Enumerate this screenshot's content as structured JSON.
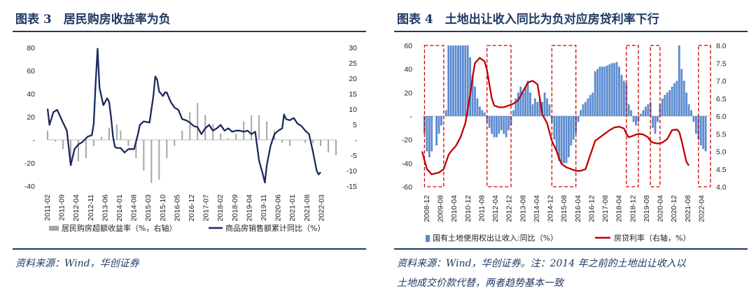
{
  "left_panel": {
    "title": "图表 3　居民购房收益率为负",
    "source": "资料来源：Wind，华创证券"
  },
  "right_panel": {
    "title": "图表 4　土地出让收入同比为负对应房贷利率下行",
    "source_line1": "资料来源：Wind，华创证券。注：2014 年之前的土地出让收入以",
    "source_line2": "土地成交价款代替，两者趋势基本一致"
  },
  "colors": {
    "navy": "#1b2a5e",
    "gray_bar": "#a6a6a6",
    "blue_bar": "#5b8bd0",
    "red_line": "#c00000",
    "frame": "#cc0000"
  },
  "chart_data": [
    {
      "type": "bar",
      "x_ticks": [
        "2011-02",
        "2011-09",
        "2012-04",
        "2012-11",
        "2013-06",
        "2014-01",
        "2014-08",
        "2015-03",
        "2015-10",
        "2016-05",
        "2016-12",
        "2017-07",
        "2018-02",
        "2018-09",
        "2019-04",
        "2019-11",
        "2020-06",
        "2021-01",
        "2021-08",
        "2022-03"
      ],
      "y_left": {
        "ticks": [
          "80",
          "60",
          "40",
          "20",
          "-",
          "-20",
          "-40"
        ],
        "ylim": [
          -40,
          80
        ]
      },
      "y_right": {
        "ticks": [
          "30",
          "25",
          "20",
          "15",
          "10",
          "5",
          "-",
          "-5",
          "-10",
          "-15"
        ],
        "ylim": [
          -15,
          30
        ]
      },
      "legend": [
        {
          "name": "居民购房超额收益率（%，右轴）",
          "color": "#a6a6a6",
          "kind": "bar"
        },
        {
          "name": "商品房销售额累计同比（%）",
          "color": "#1b2a5e",
          "kind": "line"
        }
      ],
      "bar_series_right_axis": [
        [
          0,
          3
        ],
        [
          4,
          -0.5
        ],
        [
          8,
          -3
        ],
        [
          12,
          -7
        ],
        [
          16,
          -7
        ],
        [
          20,
          -6
        ],
        [
          24,
          -2
        ],
        [
          28,
          1
        ],
        [
          32,
          4
        ],
        [
          36,
          5
        ],
        [
          38,
          3
        ],
        [
          42,
          -2
        ],
        [
          46,
          -6
        ],
        [
          50,
          -10
        ],
        [
          54,
          -14
        ],
        [
          58,
          -13
        ],
        [
          62,
          -6
        ],
        [
          66,
          -2
        ],
        [
          70,
          3
        ],
        [
          74,
          9
        ],
        [
          78,
          12
        ],
        [
          82,
          8
        ],
        [
          86,
          5
        ],
        [
          90,
          2
        ],
        [
          94,
          0.5
        ],
        [
          98,
          2
        ],
        [
          102,
          6
        ],
        [
          106,
          8
        ],
        [
          110,
          8
        ],
        [
          114,
          6
        ],
        [
          118,
          3
        ],
        [
          122,
          -1
        ],
        [
          126,
          -2
        ],
        [
          130,
          0
        ],
        [
          134,
          -1
        ],
        [
          138,
          -1
        ],
        [
          142,
          -2
        ],
        [
          146,
          -4
        ],
        [
          150,
          -5
        ]
      ],
      "line_series_left_axis": [
        [
          0,
          27
        ],
        [
          1,
          13
        ],
        [
          3,
          24
        ],
        [
          5,
          26
        ],
        [
          8,
          15
        ],
        [
          10,
          8
        ],
        [
          12,
          -22
        ],
        [
          14,
          -8
        ],
        [
          16,
          -4
        ],
        [
          18,
          -2
        ],
        [
          21,
          3
        ],
        [
          23,
          4
        ],
        [
          24,
          14
        ],
        [
          25,
          50
        ],
        [
          26,
          79
        ],
        [
          27,
          45
        ],
        [
          29,
          30
        ],
        [
          31,
          36
        ],
        [
          32,
          33
        ],
        [
          33,
          20
        ],
        [
          34,
          3
        ],
        [
          35,
          -6
        ],
        [
          36,
          -7
        ],
        [
          38,
          -7
        ],
        [
          40,
          -11
        ],
        [
          42,
          -8
        ],
        [
          45,
          -8
        ],
        [
          47,
          5
        ],
        [
          48,
          13
        ],
        [
          50,
          16
        ],
        [
          53,
          15
        ],
        [
          55,
          38
        ],
        [
          56,
          55
        ],
        [
          57,
          52
        ],
        [
          58,
          42
        ],
        [
          60,
          38
        ],
        [
          61,
          41
        ],
        [
          62,
          41
        ],
        [
          64,
          33
        ],
        [
          66,
          28
        ],
        [
          68,
          26
        ],
        [
          70,
          18
        ],
        [
          72,
          17
        ],
        [
          74,
          15
        ],
        [
          76,
          12
        ],
        [
          78,
          11
        ],
        [
          80,
          5
        ],
        [
          82,
          10
        ],
        [
          84,
          13
        ],
        [
          86,
          8
        ],
        [
          88,
          10
        ],
        [
          90,
          13
        ],
        [
          92,
          8
        ],
        [
          94,
          10
        ],
        [
          96,
          7
        ],
        [
          98,
          8
        ],
        [
          100,
          8
        ],
        [
          102,
          7
        ],
        [
          104,
          8
        ],
        [
          106,
          5
        ],
        [
          108,
          7
        ],
        [
          110,
          -18
        ],
        [
          112,
          -30
        ],
        [
          113,
          -37
        ],
        [
          114,
          -22
        ],
        [
          116,
          -5
        ],
        [
          118,
          5
        ],
        [
          120,
          8
        ],
        [
          122,
          10
        ],
        [
          123,
          22
        ],
        [
          124,
          18
        ],
        [
          126,
          17
        ],
        [
          128,
          19
        ],
        [
          130,
          14
        ],
        [
          132,
          12
        ],
        [
          134,
          8
        ],
        [
          136,
          5
        ],
        [
          138,
          -10
        ],
        [
          140,
          -27
        ],
        [
          141,
          -30
        ],
        [
          142,
          -28
        ]
      ],
      "x_index_max": 150
    },
    {
      "type": "bar",
      "x_ticks": [
        "2008-12",
        "2009-08",
        "2010-04",
        "2010-12",
        "2011-08",
        "2012-04",
        "2012-12",
        "2013-08",
        "2014-04",
        "2014-12",
        "2015-08",
        "2016-04",
        "2016-12",
        "2017-08",
        "2018-04",
        "2018-12",
        "2019-08",
        "2020-04",
        "2020-12",
        "2021-08",
        "2022-04"
      ],
      "y_left": {
        "ticks": [
          "60",
          "40",
          "20",
          "-",
          "-20",
          "-40",
          "-60"
        ],
        "ylim": [
          -60,
          60
        ]
      },
      "y_right": {
        "ticks": [
          "8.0",
          "7.5",
          "7.0",
          "6.5",
          "6.0",
          "5.5",
          "5.0",
          "4.5",
          "4.0"
        ],
        "ylim": [
          4.0,
          8.0
        ]
      },
      "legend": [
        {
          "name": "国有土地使用权出让收入:同比（%）",
          "color": "#5b8bd0",
          "kind": "bar"
        },
        {
          "name": "房贷利率（右轴，%）",
          "color": "#c00000",
          "kind": "line"
        }
      ],
      "bar_series_left_axis": [
        [
          1,
          -15
        ],
        [
          2,
          -30
        ],
        [
          3,
          -35
        ],
        [
          4,
          -30
        ],
        [
          6,
          -25
        ],
        [
          7,
          -15
        ],
        [
          8,
          -8
        ],
        [
          10,
          5
        ],
        [
          11,
          60
        ],
        [
          12,
          60
        ],
        [
          13,
          60
        ],
        [
          14,
          60
        ],
        [
          15,
          60
        ],
        [
          16,
          60
        ],
        [
          17,
          60
        ],
        [
          18,
          60
        ],
        [
          19,
          60
        ],
        [
          20,
          50
        ],
        [
          21,
          35
        ],
        [
          22,
          25
        ],
        [
          23,
          15
        ],
        [
          24,
          8
        ],
        [
          25,
          5
        ],
        [
          26,
          3
        ],
        [
          27,
          -5
        ],
        [
          28,
          -10
        ],
        [
          29,
          -15
        ],
        [
          30,
          -18
        ],
        [
          31,
          -18
        ],
        [
          32,
          -15
        ],
        [
          33,
          -12
        ],
        [
          34,
          -15
        ],
        [
          35,
          -18
        ],
        [
          36,
          -12
        ],
        [
          37,
          -8
        ],
        [
          38,
          5
        ],
        [
          39,
          15
        ],
        [
          40,
          20
        ],
        [
          41,
          25
        ],
        [
          42,
          20
        ],
        [
          43,
          25
        ],
        [
          44,
          30
        ],
        [
          45,
          20
        ],
        [
          46,
          10
        ],
        [
          47,
          15
        ],
        [
          48,
          12
        ],
        [
          49,
          15
        ],
        [
          50,
          12
        ],
        [
          51,
          20
        ],
        [
          52,
          15
        ],
        [
          53,
          10
        ],
        [
          54,
          -5
        ],
        [
          55,
          -20
        ],
        [
          56,
          -30
        ],
        [
          57,
          -38
        ],
        [
          58,
          -40
        ],
        [
          59,
          -40
        ],
        [
          60,
          -40
        ],
        [
          61,
          -35
        ],
        [
          62,
          -25
        ],
        [
          63,
          -20
        ],
        [
          64,
          -15
        ],
        [
          65,
          -5
        ],
        [
          66,
          5
        ],
        [
          67,
          10
        ],
        [
          68,
          12
        ],
        [
          69,
          15
        ],
        [
          70,
          18
        ],
        [
          71,
          20
        ],
        [
          72,
          38
        ],
        [
          73,
          40
        ],
        [
          74,
          42
        ],
        [
          75,
          42
        ],
        [
          76,
          42
        ],
        [
          77,
          43
        ],
        [
          78,
          44
        ],
        [
          79,
          45
        ],
        [
          80,
          45
        ],
        [
          81,
          46
        ],
        [
          82,
          42
        ],
        [
          83,
          35
        ],
        [
          84,
          30
        ],
        [
          85,
          28
        ],
        [
          86,
          10
        ],
        [
          87,
          5
        ],
        [
          88,
          -5
        ],
        [
          89,
          -8
        ],
        [
          90,
          -5
        ],
        [
          91,
          2
        ],
        [
          92,
          5
        ],
        [
          93,
          8
        ],
        [
          94,
          10
        ],
        [
          95,
          12
        ],
        [
          96,
          -10
        ],
        [
          97,
          -15
        ],
        [
          98,
          -5
        ],
        [
          99,
          10
        ],
        [
          100,
          15
        ],
        [
          101,
          18
        ],
        [
          102,
          20
        ],
        [
          103,
          22
        ],
        [
          104,
          25
        ],
        [
          105,
          28
        ],
        [
          106,
          30
        ],
        [
          107,
          60
        ],
        [
          108,
          40
        ],
        [
          109,
          30
        ],
        [
          110,
          20
        ],
        [
          111,
          10
        ],
        [
          112,
          5
        ],
        [
          113,
          -5
        ],
        [
          114,
          -15
        ],
        [
          115,
          -20
        ],
        [
          116,
          -25
        ],
        [
          117,
          -28
        ],
        [
          118,
          -30
        ]
      ],
      "line_series_right_axis": [
        [
          0,
          5.0
        ],
        [
          2,
          4.5
        ],
        [
          4,
          4.35
        ],
        [
          7,
          4.4
        ],
        [
          9,
          4.5
        ],
        [
          10,
          4.7
        ],
        [
          11,
          4.9
        ],
        [
          12,
          5.0
        ],
        [
          14,
          5.15
        ],
        [
          16,
          5.4
        ],
        [
          18,
          5.8
        ],
        [
          20,
          6.6
        ],
        [
          21,
          7.1
        ],
        [
          22,
          7.5
        ],
        [
          24,
          7.65
        ],
        [
          26,
          7.55
        ],
        [
          27,
          7.3
        ],
        [
          28,
          6.9
        ],
        [
          29,
          6.5
        ],
        [
          30,
          6.3
        ],
        [
          32,
          6.25
        ],
        [
          34,
          6.25
        ],
        [
          36,
          6.3
        ],
        [
          38,
          6.35
        ],
        [
          40,
          6.45
        ],
        [
          42,
          6.7
        ],
        [
          44,
          6.95
        ],
        [
          46,
          7.0
        ],
        [
          48,
          6.9
        ],
        [
          49,
          6.5
        ],
        [
          50,
          6.05
        ],
        [
          52,
          5.8
        ],
        [
          54,
          5.3
        ],
        [
          56,
          5.0
        ],
        [
          57,
          4.8
        ],
        [
          58,
          4.65
        ],
        [
          60,
          4.55
        ],
        [
          62,
          4.5
        ],
        [
          64,
          4.45
        ],
        [
          66,
          4.45
        ],
        [
          68,
          4.5
        ],
        [
          69,
          4.7
        ],
        [
          70,
          4.9
        ],
        [
          71,
          5.1
        ],
        [
          72,
          5.3
        ],
        [
          74,
          5.4
        ],
        [
          76,
          5.5
        ],
        [
          78,
          5.6
        ],
        [
          80,
          5.68
        ],
        [
          82,
          5.7
        ],
        [
          84,
          5.65
        ],
        [
          85,
          5.5
        ],
        [
          86,
          5.4
        ],
        [
          88,
          5.45
        ],
        [
          90,
          5.5
        ],
        [
          92,
          5.48
        ],
        [
          94,
          5.4
        ],
        [
          95,
          5.3
        ],
        [
          96,
          5.25
        ],
        [
          98,
          5.22
        ],
        [
          100,
          5.25
        ],
        [
          102,
          5.35
        ],
        [
          104,
          5.6
        ],
        [
          106,
          5.62
        ],
        [
          107,
          5.55
        ],
        [
          108,
          5.3
        ],
        [
          109,
          5.0
        ],
        [
          110,
          4.7
        ],
        [
          111,
          4.6
        ]
      ],
      "x_index_max": 120,
      "highlight_windows_x_index": [
        [
          1,
          9
        ],
        [
          27,
          37
        ],
        [
          54,
          64
        ],
        [
          85,
          90
        ],
        [
          95,
          99
        ],
        [
          115,
          120
        ]
      ]
    }
  ]
}
